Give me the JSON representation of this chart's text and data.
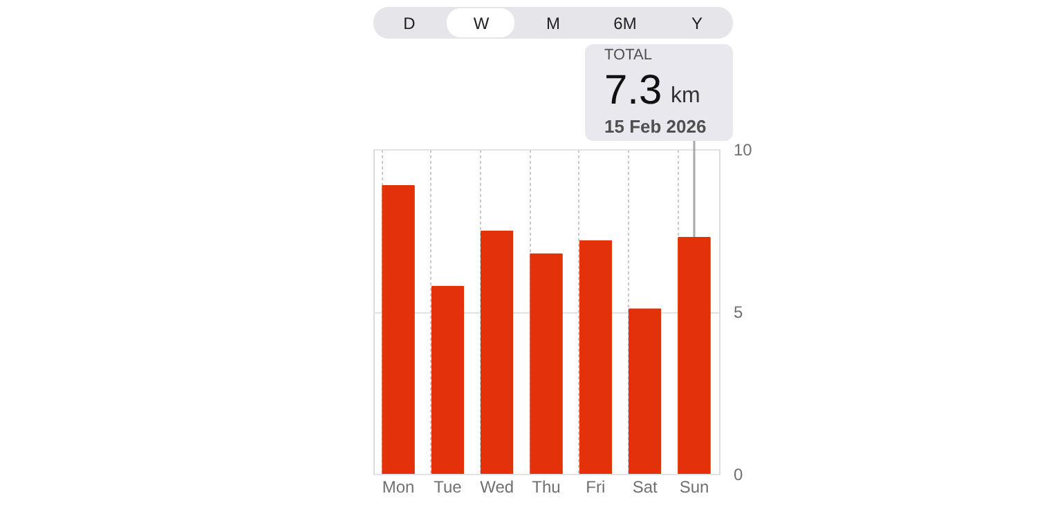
{
  "chart_data": {
    "type": "bar",
    "categories": [
      "Mon",
      "Tue",
      "Wed",
      "Thu",
      "Fri",
      "Sat",
      "Sun"
    ],
    "values": [
      8.9,
      5.8,
      7.5,
      6.8,
      7.2,
      5.1,
      7.3
    ],
    "color": "#e33209",
    "ylim": [
      0,
      10
    ],
    "yticks": [
      0,
      5,
      10
    ],
    "grid": true,
    "annotations": [
      "D",
      "W",
      "M",
      "6M",
      "Y",
      "TOTAL",
      {
        "text": "7.3",
        "x": "Sun",
        "y": 7.3
      },
      "km",
      "15 Feb 2026"
    ]
  }
}
